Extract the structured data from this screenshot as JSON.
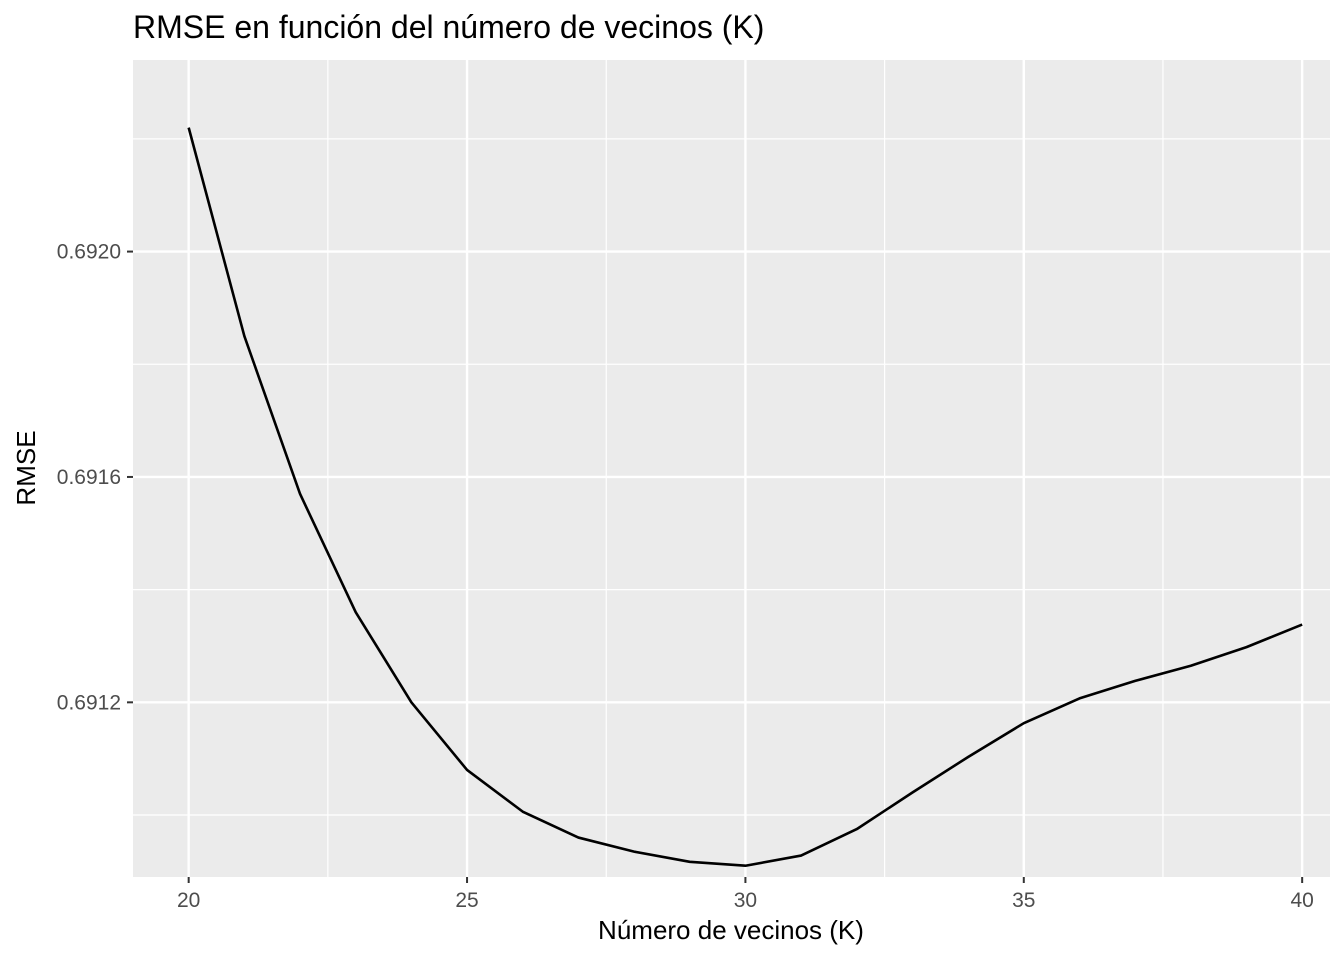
{
  "chart_data": {
    "type": "line",
    "title": "RMSE en función del número de vecinos (K)",
    "xlabel": "Número de vecinos (K)",
    "ylabel": "RMSE",
    "xlim": [
      19.0,
      40.5
    ],
    "ylim": [
      0.69089,
      0.69234
    ],
    "x_ticks": [
      20,
      25,
      30,
      35,
      40
    ],
    "x_tick_labels": [
      "20",
      "25",
      "30",
      "35",
      "40"
    ],
    "y_ticks": [
      0.6912,
      0.6916,
      0.692
    ],
    "y_tick_labels": [
      "0.6912",
      "0.6916",
      "0.6920"
    ],
    "grid": true,
    "series": [
      {
        "color": "#000000",
        "x": [
          20,
          21,
          22,
          23,
          24,
          25,
          26,
          27,
          28,
          29,
          30,
          31,
          32,
          33,
          34,
          35,
          36,
          37,
          38,
          39,
          40
        ],
        "y": [
          0.69222,
          0.69185,
          0.69157,
          0.69136,
          0.6912,
          0.69108,
          0.691006,
          0.69096,
          0.690935,
          0.690917,
          0.69091,
          0.690928,
          0.690975,
          0.69104,
          0.691103,
          0.691163,
          0.691207,
          0.691238,
          0.691265,
          0.691298,
          0.691338
        ]
      }
    ]
  }
}
